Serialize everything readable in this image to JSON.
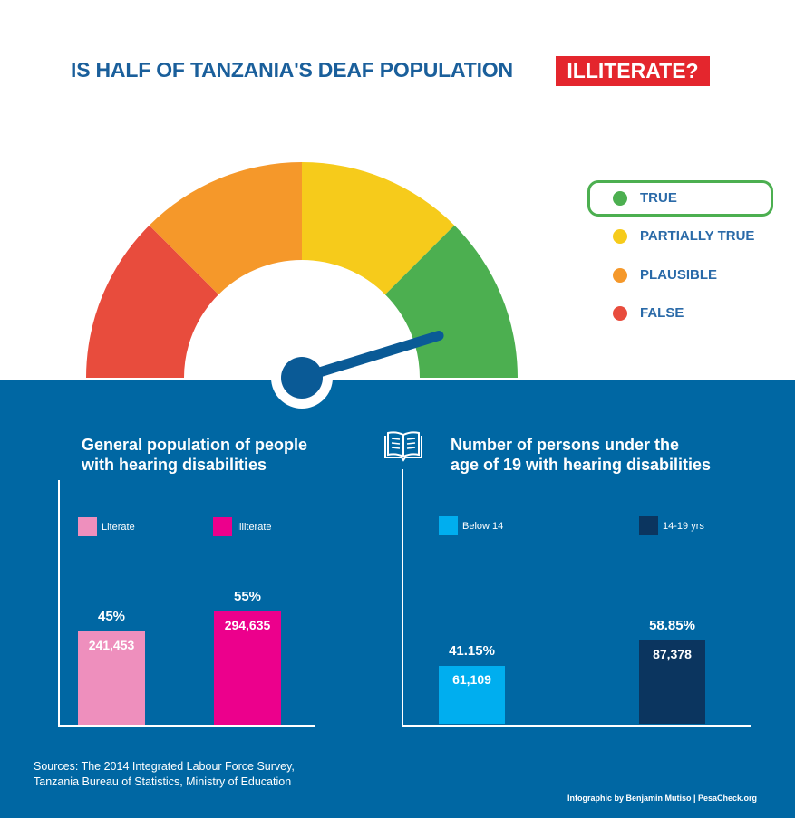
{
  "title": {
    "main": "IS HALF OF TANZANIA'S DEAF POPULATION",
    "badge": "ILLITERATE?"
  },
  "gauge": {
    "segments": [
      {
        "name": "FALSE",
        "color": "#e84c3d"
      },
      {
        "name": "PLAUSIBLE",
        "color": "#f5982a"
      },
      {
        "name": "PARTIALLY TRUE",
        "color": "#f6cb1b"
      },
      {
        "name": "TRUE",
        "color": "#4caf50"
      }
    ],
    "verdict": "TRUE",
    "needle_color": "#0a5a96"
  },
  "legend": [
    {
      "label": "TRUE",
      "color": "#4caf50",
      "selected": true
    },
    {
      "label": "PARTIALLY TRUE",
      "color": "#f6cb1b",
      "selected": false
    },
    {
      "label": "PLAUSIBLE",
      "color": "#f5982a",
      "selected": false
    },
    {
      "label": "FALSE",
      "color": "#e84c3d",
      "selected": false
    }
  ],
  "chart_data": [
    {
      "type": "bar",
      "title": "General population of people with hearing disabilities",
      "title_lines": [
        "General population of people",
        "with hearing disabilities"
      ],
      "categories": [
        "Literate",
        "Illiterate"
      ],
      "percent_labels": [
        "45%",
        "55%"
      ],
      "percent_values": [
        45,
        55
      ],
      "count_labels": [
        "241,453",
        "294,635"
      ],
      "values": [
        241453,
        294635
      ],
      "colors": [
        "#ee8fbd",
        "#ec008c"
      ],
      "ylim": [
        0,
        600000
      ]
    },
    {
      "type": "bar",
      "title": "Number of persons under the age of 19 with hearing disabilities",
      "title_lines": [
        "Number of persons under the",
        "age of 19  with hearing disabilities"
      ],
      "categories": [
        "Below 14",
        "14-19 yrs"
      ],
      "percent_labels": [
        "41.15%",
        "58.85%"
      ],
      "percent_values": [
        41.15,
        58.85
      ],
      "count_labels": [
        "61,109",
        "87,378"
      ],
      "values": [
        61109,
        87378
      ],
      "colors": [
        "#00aeef",
        "#0b355f"
      ],
      "ylim": [
        0,
        170000
      ]
    }
  ],
  "sources": {
    "line1": "Sources: The 2014 Integrated Labour Force Survey,",
    "line2": "Tanzania Bureau of Statistics, Ministry of Education"
  },
  "credit": "Infographic by Benjamin Mutiso | PesaCheck.org"
}
